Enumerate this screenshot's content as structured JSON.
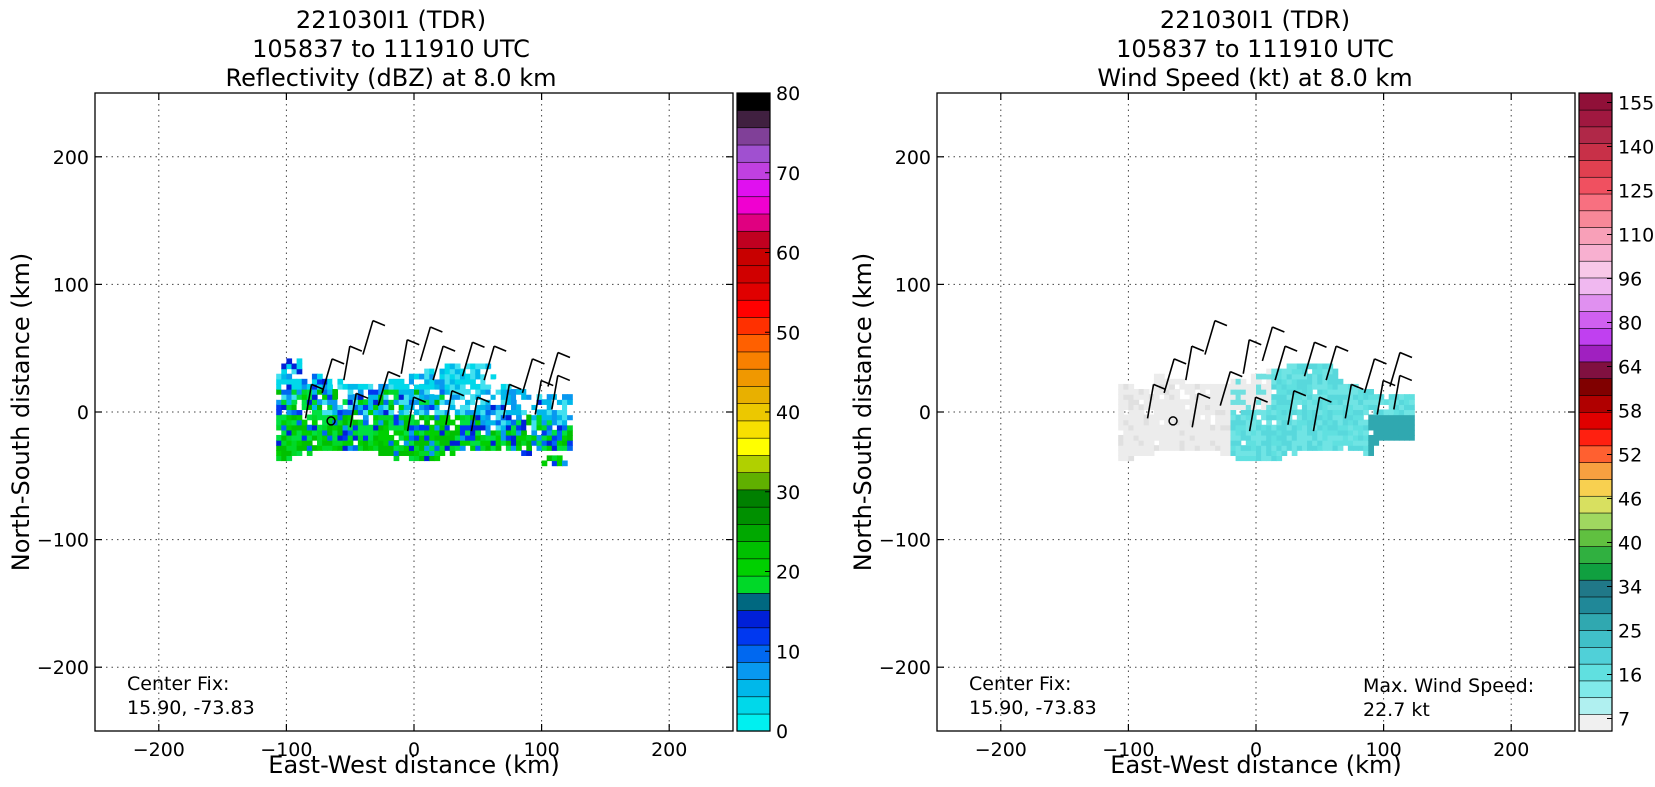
{
  "chart_data": [
    {
      "type": "heatmap",
      "title": [
        "221030I1 (TDR)",
        "105837 to 111910 UTC",
        "Reflectivity (dBZ) at 8.0 km"
      ],
      "xlabel": "East-West distance (km)",
      "ylabel": "North-South distance (km)",
      "xlim": [
        -250,
        250
      ],
      "ylim": [
        -250,
        250
      ],
      "xticks": [
        -200,
        -100,
        0,
        100,
        200
      ],
      "yticks": [
        -200,
        -100,
        0,
        100,
        200
      ],
      "grid": true,
      "annotation": [
        "Center Fix:",
        "15.90, -73.83"
      ],
      "colorbar": {
        "min": 0,
        "max": 80,
        "tick_labels": [
          "0",
          "10",
          "20",
          "30",
          "40",
          "50",
          "60",
          "70",
          "80"
        ],
        "tick_values": [
          0,
          10,
          20,
          30,
          40,
          50,
          60,
          70,
          80
        ],
        "colors": [
          "#00f0f0",
          "#00d8ea",
          "#00b8ea",
          "#0898f0",
          "#0068f0",
          "#0038f0",
          "#0020d8",
          "#006880",
          "#00d828",
          "#00d000",
          "#00c000",
          "#00a800",
          "#009000",
          "#008000",
          "#60b000",
          "#b0d000",
          "#ffff00",
          "#f8e000",
          "#ecc800",
          "#e8b000",
          "#f09800",
          "#f88000",
          "#ff6000",
          "#ff3000",
          "#ff0000",
          "#e00000",
          "#d00000",
          "#c80000",
          "#c00020",
          "#e00080",
          "#f000d0",
          "#e010f0",
          "#c040e0",
          "#a050d0",
          "#804098",
          "#402040",
          "#000000"
        ]
      },
      "center_fix_km": [
        -65,
        -7
      ],
      "shaded_region": {
        "description": "echoes spanning roughly -105 to 120 km E-W and -45 to 40 km N-S",
        "x_range": [
          -105,
          120
        ],
        "y_range": [
          -45,
          40
        ]
      }
    },
    {
      "type": "heatmap",
      "title": [
        "221030I1 (TDR)",
        "105837 to 111910 UTC",
        "Wind Speed (kt) at 8.0 km"
      ],
      "xlabel": "East-West distance (km)",
      "ylabel": "North-South distance (km)",
      "xlim": [
        -250,
        250
      ],
      "ylim": [
        -250,
        250
      ],
      "xticks": [
        -200,
        -100,
        0,
        100,
        200
      ],
      "yticks": [
        -200,
        -100,
        0,
        100,
        200
      ],
      "grid": true,
      "annotation": [
        "Center Fix:",
        "15.90, -73.83"
      ],
      "annotation_right": [
        "Max. Wind Speed:",
        "22.7 kt"
      ],
      "max_wind_speed_kt": 22.7,
      "colorbar": {
        "tick_labels": [
          "7",
          "16",
          "25",
          "34",
          "40",
          "46",
          "52",
          "58",
          "64",
          "80",
          "96",
          "110",
          "125",
          "140",
          "155"
        ],
        "colors": [
          "#f0f0f0",
          "#b0f0f0",
          "#80eaea",
          "#60e0e0",
          "#50d0d8",
          "#40c0c8",
          "#30a8b0",
          "#208898",
          "#207888",
          "#10a040",
          "#30b040",
          "#60c040",
          "#a0d860",
          "#d8e060",
          "#f8d050",
          "#f8a040",
          "#ff6030",
          "#ff2010",
          "#e00000",
          "#b00000",
          "#800000",
          "#801040",
          "#a020c0",
          "#c040f0",
          "#d060f0",
          "#e090f0",
          "#f0b8f0",
          "#f8c8e8",
          "#f8b0d0",
          "#f8a0b8",
          "#f88898",
          "#f87080",
          "#f05060",
          "#e04050",
          "#c83048",
          "#b02848",
          "#a01840",
          "#901038"
        ]
      },
      "center_fix_km": [
        -65,
        -7
      ]
    }
  ]
}
